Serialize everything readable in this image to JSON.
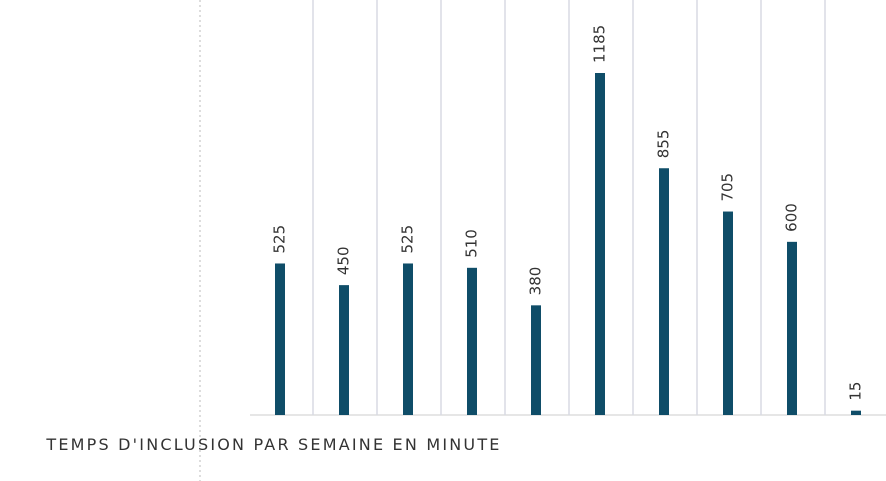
{
  "chart_data": {
    "type": "bar",
    "title": "TEMPS D'INCLUSION PAR SEMAINE EN MINUTE",
    "categories": [
      null,
      null,
      null,
      null,
      null,
      null,
      null,
      null,
      null,
      null
    ],
    "values": [
      525,
      450,
      525,
      510,
      380,
      1185,
      855,
      705,
      600,
      15
    ],
    "color": "#0f4d68",
    "grid": true
  }
}
